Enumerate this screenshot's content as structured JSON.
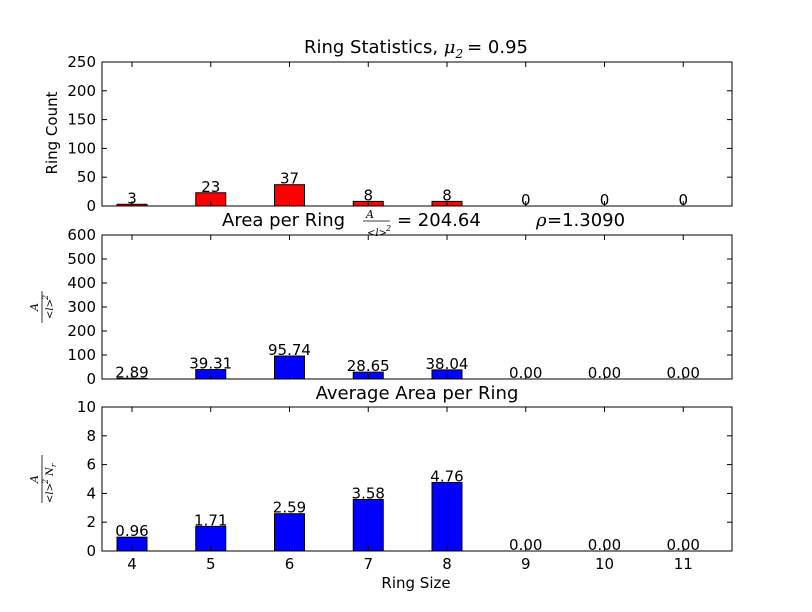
{
  "chart_data": [
    {
      "type": "bar",
      "title_prefix": "Ring Statistics, ",
      "title_symbol": "μ",
      "title_subscript": "2",
      "title_value": "= 0.95",
      "ylabel": "Ring Count",
      "xlabel": "",
      "ylim": [
        0,
        250
      ],
      "yticks": [
        "0",
        "50",
        "100",
        "150",
        "200",
        "250"
      ],
      "categories": [
        "4",
        "5",
        "6",
        "7",
        "8",
        "9",
        "10",
        "11"
      ],
      "values": [
        3,
        23,
        37,
        8,
        8,
        0,
        0,
        0
      ],
      "data_labels": [
        "3",
        "23",
        "37",
        "8",
        "8",
        "0",
        "0",
        "0"
      ],
      "color": "#ff0000"
    },
    {
      "type": "bar",
      "title_prefix": "Area per Ring ",
      "title_frac_num": "A",
      "title_frac_den": "<l>",
      "title_frac_den_sup": "2",
      "title_value": "= 204.64 ",
      "title_rho_symbol": "ρ",
      "title_rho_value": "=1.3090",
      "ylabel_num": "A",
      "ylabel_den": "<l>",
      "ylabel_den_sup": "2",
      "xlabel": "",
      "ylim": [
        0,
        600
      ],
      "yticks": [
        "0",
        "100",
        "200",
        "300",
        "400",
        "500",
        "600"
      ],
      "categories": [
        "4",
        "5",
        "6",
        "7",
        "8",
        "9",
        "10",
        "11"
      ],
      "values": [
        2.89,
        39.31,
        95.74,
        28.65,
        38.04,
        0.0,
        0.0,
        0.0
      ],
      "data_labels": [
        "2.89",
        "39.31",
        "95.74",
        "28.65",
        "38.04",
        "0.00",
        "0.00",
        "0.00"
      ],
      "color": "#0000ff"
    },
    {
      "type": "bar",
      "title": "Average Area per Ring",
      "ylabel_num": "A",
      "ylabel_den": "<l>",
      "ylabel_den_sup": "2",
      "ylabel_den_tail": "N",
      "ylabel_den_tail_sub": "r",
      "xlabel": "Ring Size",
      "ylim": [
        0,
        10
      ],
      "yticks": [
        "0",
        "2",
        "4",
        "6",
        "8",
        "10"
      ],
      "categories": [
        "4",
        "5",
        "6",
        "7",
        "8",
        "9",
        "10",
        "11"
      ],
      "values": [
        0.96,
        1.71,
        2.59,
        3.58,
        4.76,
        0.0,
        0.0,
        0.0
      ],
      "data_labels": [
        "0.96",
        "1.71",
        "2.59",
        "3.58",
        "4.76",
        "0.00",
        "0.00",
        "0.00"
      ],
      "color": "#0000ff"
    }
  ]
}
